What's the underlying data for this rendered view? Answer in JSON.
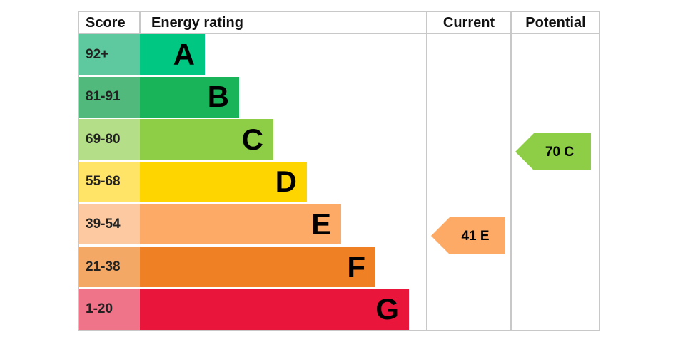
{
  "header": {
    "score": "Score",
    "rating": "Energy rating",
    "current": "Current",
    "potential": "Potential"
  },
  "bands": [
    {
      "score": "92+",
      "letter": "A",
      "color": "#00c781",
      "score_color": "#5ec89e"
    },
    {
      "score": "81-91",
      "letter": "B",
      "color": "#19b459",
      "score_color": "#52b97d"
    },
    {
      "score": "69-80",
      "letter": "C",
      "color": "#8dce46",
      "score_color": "#b4de88"
    },
    {
      "score": "55-68",
      "letter": "D",
      "color": "#ffd500",
      "score_color": "#ffe468"
    },
    {
      "score": "39-54",
      "letter": "E",
      "color": "#fcaa65",
      "score_color": "#fdc9a0"
    },
    {
      "score": "21-38",
      "letter": "F",
      "color": "#ef8023",
      "score_color": "#f4a866"
    },
    {
      "score": "1-20",
      "letter": "G",
      "color": "#e9153b",
      "score_color": "#ef7489"
    }
  ],
  "current": {
    "label": "41 E",
    "color": "#fcaa65"
  },
  "potential": {
    "label": "70 C",
    "color": "#8dce46"
  }
}
